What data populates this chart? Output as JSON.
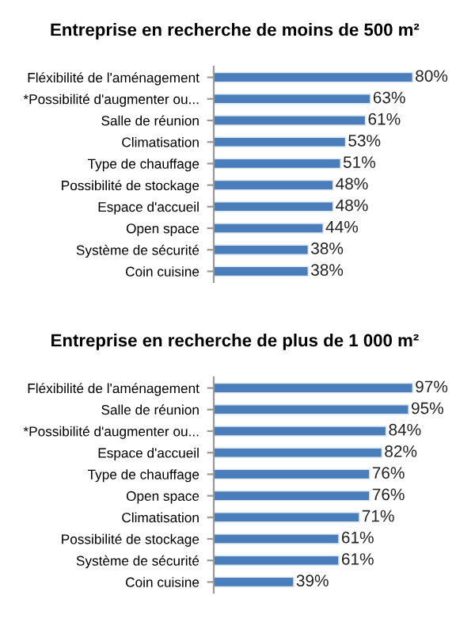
{
  "chart_data": [
    {
      "type": "bar",
      "orientation": "horizontal",
      "title": "Entreprise en recherche de moins de 500 m²",
      "categories": [
        "Fléxibilité de l'aménagement",
        "*Possibilité d'augmenter ou...",
        "Salle de réunion",
        "Climatisation",
        "Type de chauffage",
        "Possibilité de stockage",
        "Espace d'accueil",
        "Open space",
        "Système de sécurité",
        "Coin cuisine"
      ],
      "values": [
        80,
        63,
        61,
        53,
        51,
        48,
        48,
        44,
        38,
        38
      ],
      "value_labels": [
        "80%",
        "63%",
        "61%",
        "53%",
        "51%",
        "48%",
        "48%",
        "44%",
        "38%",
        "38%"
      ],
      "color": "#4a7ebb",
      "tick_labels": "y",
      "grid": false,
      "legend": false
    },
    {
      "type": "bar",
      "orientation": "horizontal",
      "title": "Entreprise en recherche de plus de 1 000 m²",
      "categories": [
        "Fléxibilité de l'aménagement",
        "Salle de réunion",
        "*Possibilité d'augmenter ou...",
        "Espace d'accueil",
        "Type de chauffage",
        "Open space",
        "Climatisation",
        "Possibilité de stockage",
        "Système de sécurité",
        "Coin cuisine"
      ],
      "values": [
        97,
        95,
        84,
        82,
        76,
        76,
        71,
        61,
        61,
        39
      ],
      "value_labels": [
        "97%",
        "95%",
        "84%",
        "82%",
        "76%",
        "76%",
        "71%",
        "61%",
        "61%",
        "39%"
      ],
      "color": "#4a7ebb",
      "tick_labels": "y",
      "grid": false,
      "legend": false
    }
  ]
}
